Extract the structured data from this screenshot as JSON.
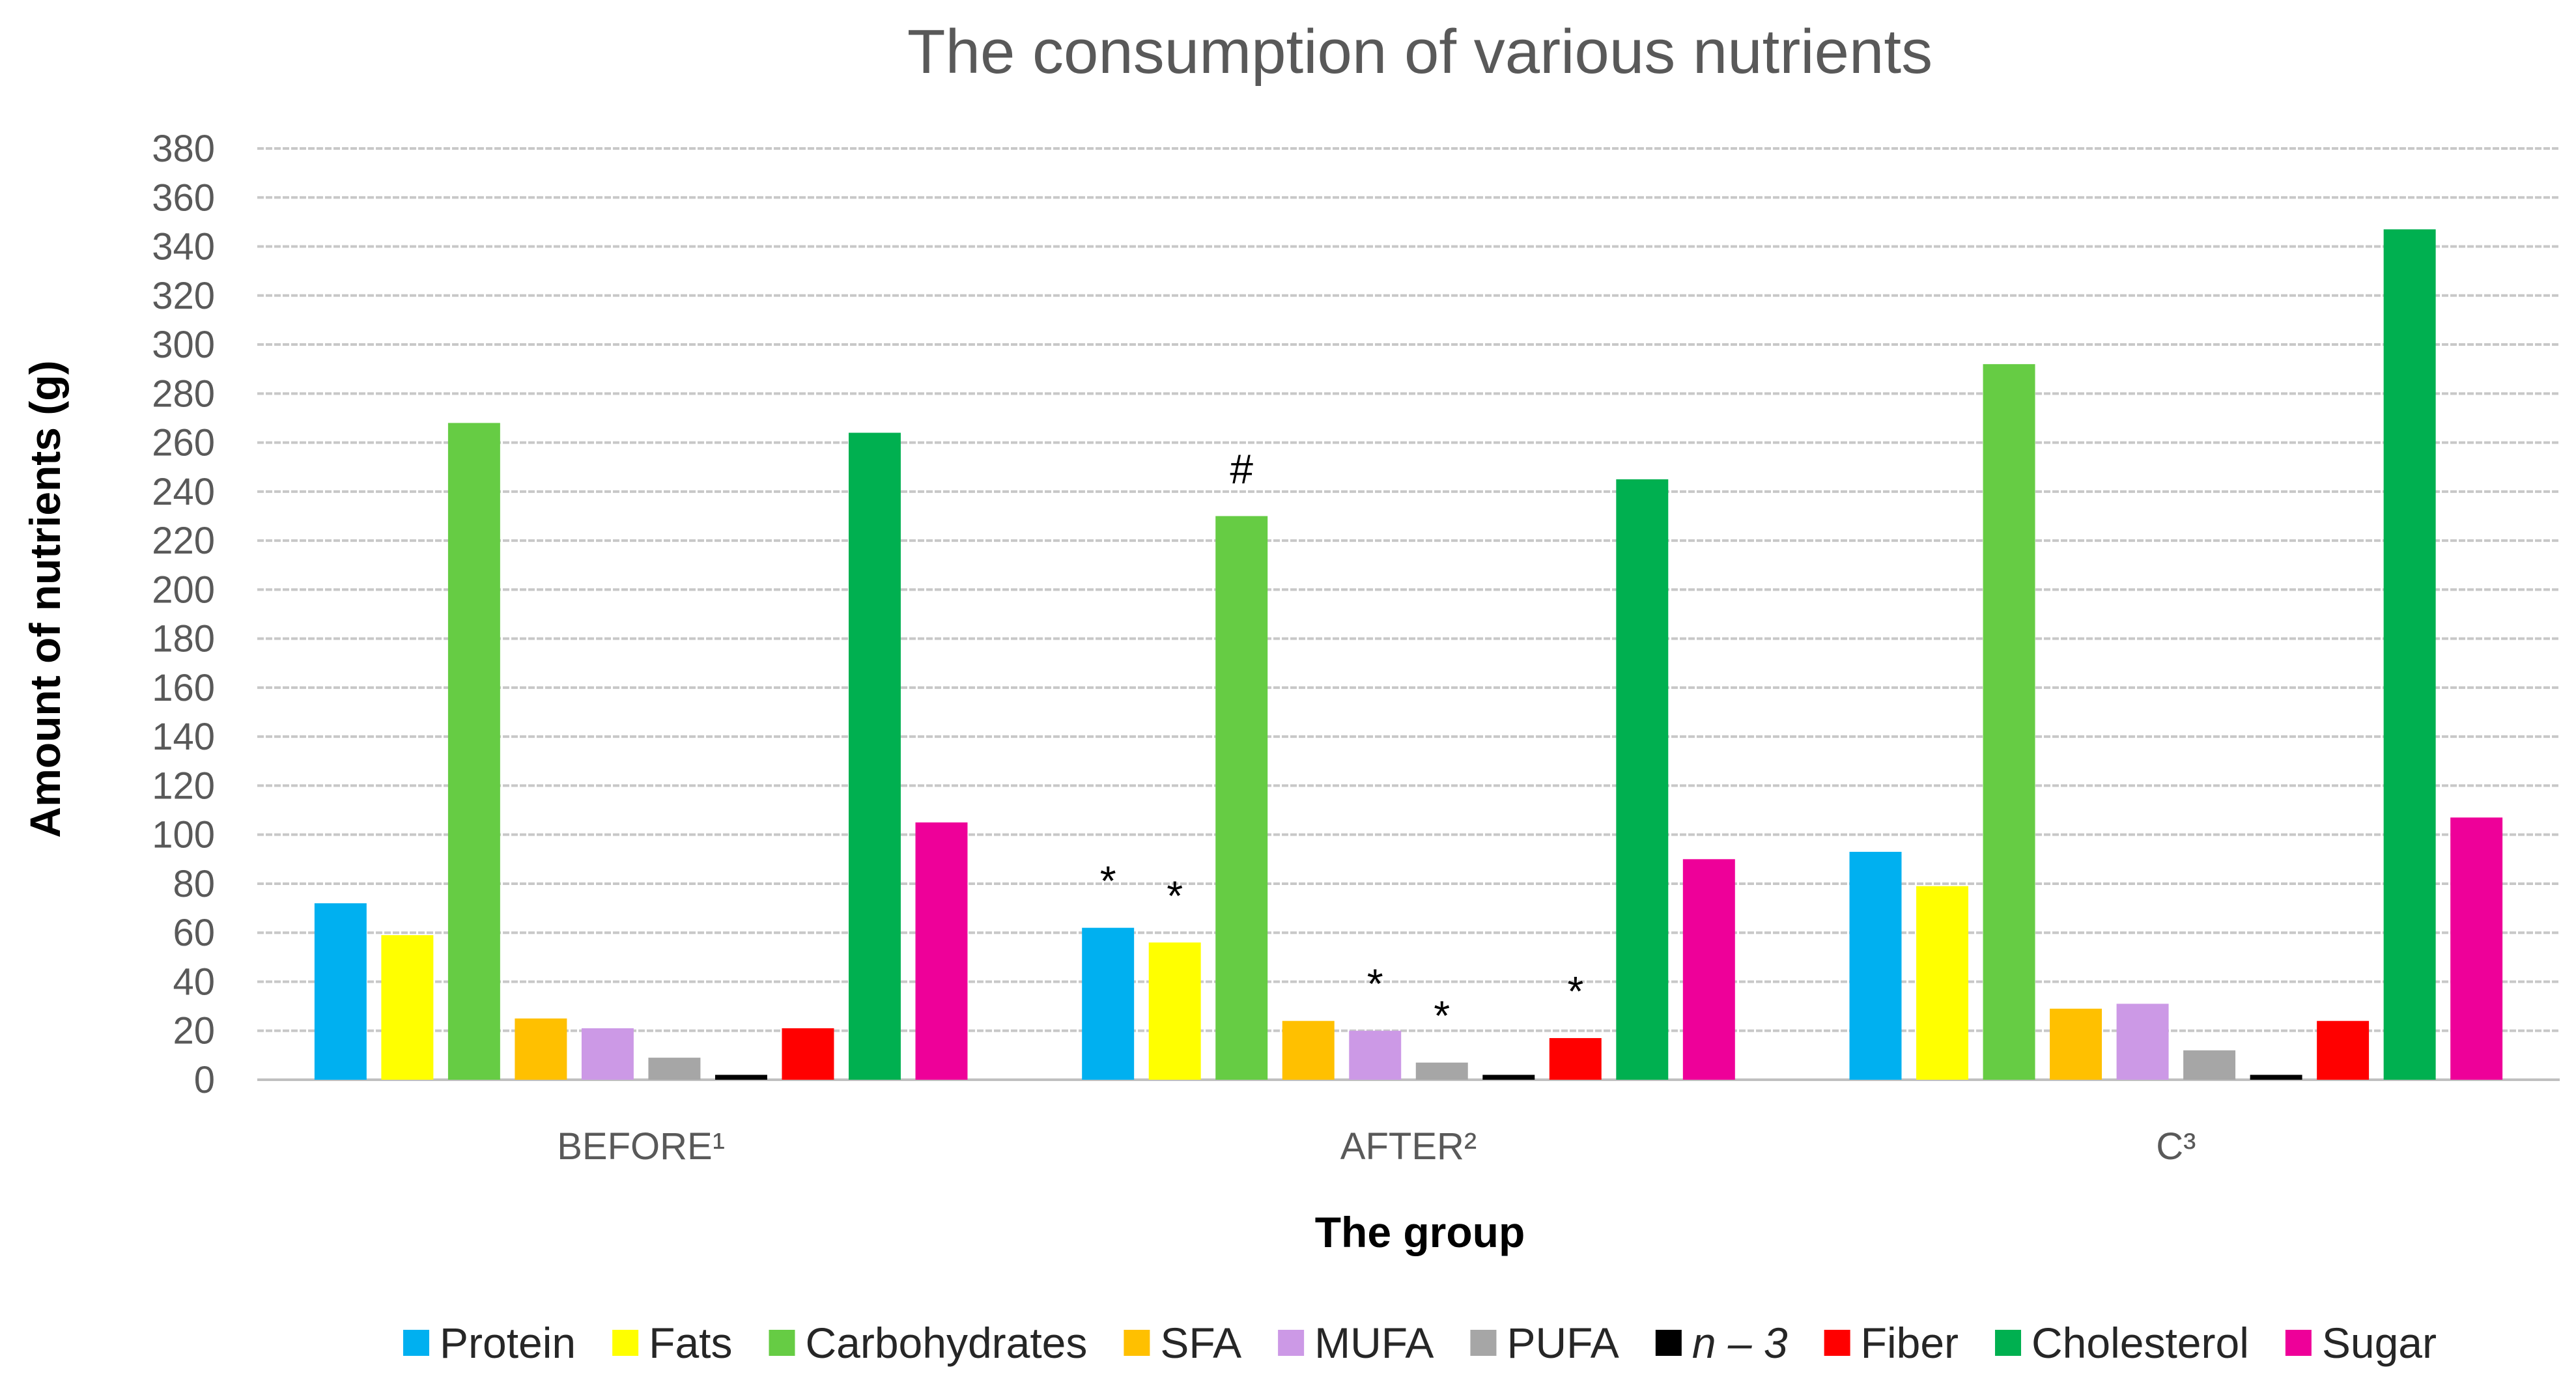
{
  "chart_data": {
    "type": "bar",
    "title": "The consumption of various nutrients",
    "xlabel": "The group",
    "ylabel": "Amount of nutrients (g)",
    "ylim": [
      0,
      380
    ],
    "ytick_step": 20,
    "grid": true,
    "legend_position": "bottom",
    "categories": [
      "BEFORE¹",
      "AFTER²",
      "C³"
    ],
    "series": [
      {
        "name": "Protein",
        "color": "#00B0F0",
        "values": [
          72,
          62,
          93
        ]
      },
      {
        "name": "Fats",
        "color": "#FFFF00",
        "values": [
          59,
          56,
          79
        ]
      },
      {
        "name": "Carbohydrates",
        "color": "#66CC44",
        "values": [
          268,
          230,
          292
        ]
      },
      {
        "name": "SFA",
        "color": "#FFC000",
        "values": [
          25,
          24,
          29
        ]
      },
      {
        "name": "MUFA",
        "color": "#CC99E6",
        "values": [
          21,
          20,
          31
        ]
      },
      {
        "name": "PUFA",
        "color": "#A6A6A6",
        "values": [
          9,
          7,
          12
        ]
      },
      {
        "name": "n – 3",
        "color": "#000000",
        "values": [
          2,
          2,
          2
        ],
        "italic": true
      },
      {
        "name": "Fiber",
        "color": "#FF0000",
        "values": [
          21,
          17,
          24
        ]
      },
      {
        "name": "Cholesterol",
        "color": "#00B050",
        "values": [
          264,
          245,
          347
        ]
      },
      {
        "name": "Sugar",
        "color": "#EE0099",
        "values": [
          105,
          90,
          107
        ]
      }
    ],
    "annotations": [
      {
        "text": "*",
        "category": 1,
        "series": 0
      },
      {
        "text": "*",
        "category": 1,
        "series": 1
      },
      {
        "text": "#",
        "category": 1,
        "series": 2
      },
      {
        "text": "*",
        "category": 1,
        "series": 4
      },
      {
        "text": "*",
        "category": 1,
        "series": 5
      },
      {
        "text": "*",
        "category": 1,
        "series": 7
      }
    ]
  }
}
